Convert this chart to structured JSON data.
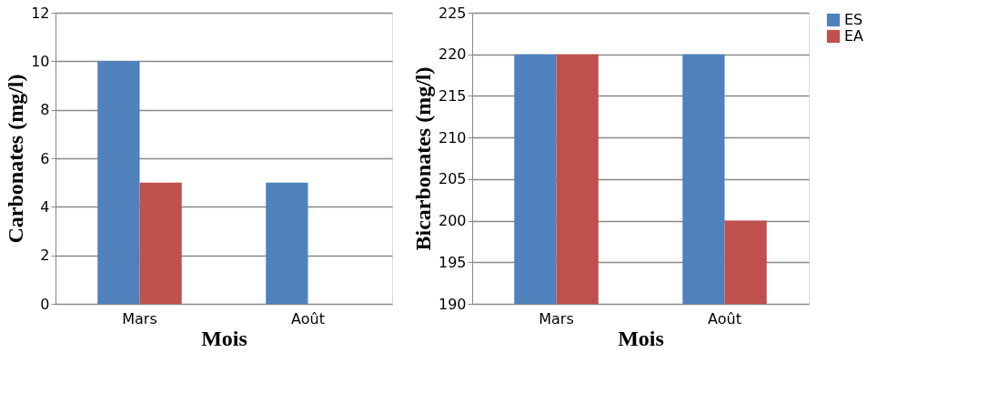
{
  "chart_data": [
    {
      "type": "bar",
      "categories": [
        "Mars",
        "Août"
      ],
      "xlabel": "Mois",
      "ylabel": "Carbonates (mg/l)",
      "ylim": [
        0,
        12
      ],
      "yticks": [
        0,
        2,
        4,
        6,
        8,
        10,
        12
      ],
      "grid": "y",
      "legend": "right",
      "series": [
        {
          "name": "ES",
          "color": "#4f81bd",
          "values": [
            10,
            5
          ]
        },
        {
          "name": "EA",
          "color": "#c0504d",
          "values": [
            5,
            null
          ]
        }
      ]
    },
    {
      "type": "bar",
      "categories": [
        "Mars",
        "Août"
      ],
      "xlabel": "Mois",
      "ylabel": "Bicarbonates (mg/l)",
      "ylim": [
        190,
        225
      ],
      "yticks": [
        190,
        195,
        200,
        205,
        210,
        215,
        220,
        225
      ],
      "grid": "y",
      "legend": "right",
      "series": [
        {
          "name": "ES",
          "color": "#4f81bd",
          "values": [
            220,
            220
          ]
        },
        {
          "name": "EA",
          "color": "#c0504d",
          "values": [
            220,
            200
          ]
        }
      ]
    }
  ]
}
